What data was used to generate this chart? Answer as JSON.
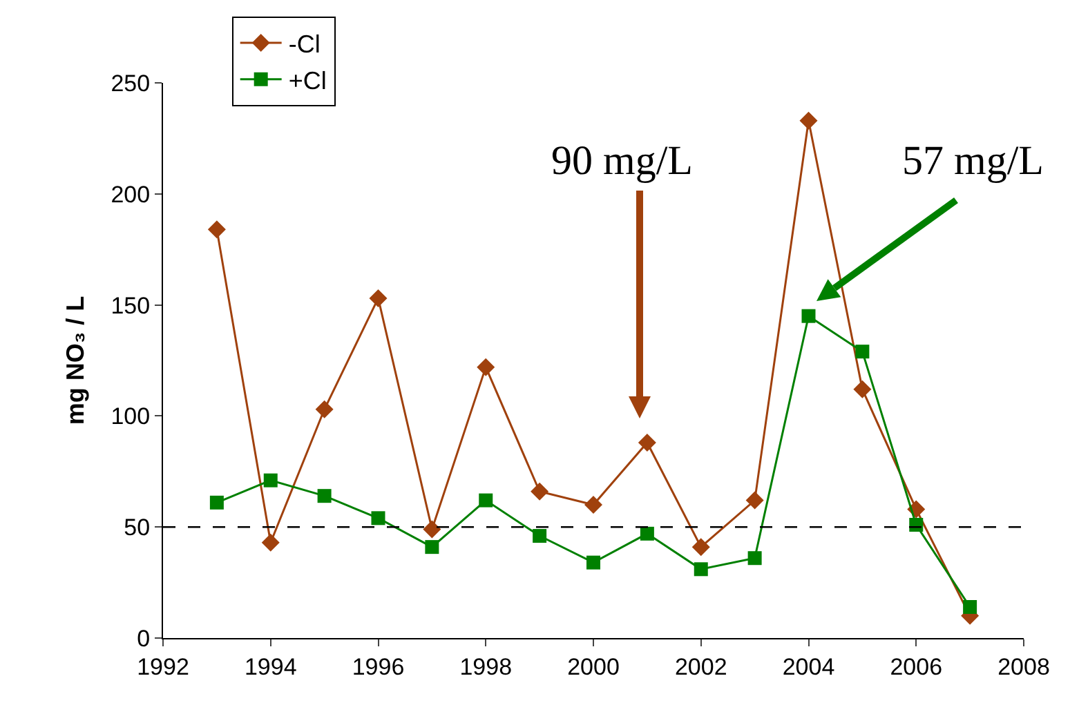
{
  "chart_data": {
    "type": "line",
    "ylabel": "mg NO₃ / L",
    "x": [
      1993,
      1994,
      1995,
      1996,
      1997,
      1998,
      1999,
      2000,
      2001,
      2002,
      2003,
      2004,
      2005,
      2006,
      2007
    ],
    "series": [
      {
        "name": "-Cl",
        "color": "#a0410d",
        "marker": "diamond",
        "values": [
          184,
          43,
          103,
          153,
          49,
          122,
          66,
          60,
          88,
          41,
          62,
          233,
          112,
          58,
          10
        ]
      },
      {
        "name": "+Cl",
        "color": "#008000",
        "marker": "square",
        "values": [
          61,
          71,
          64,
          54,
          41,
          62,
          46,
          34,
          47,
          31,
          36,
          145,
          129,
          51,
          14
        ]
      }
    ],
    "xlim": [
      1992,
      2008
    ],
    "xticks": [
      1992,
      1994,
      1996,
      1998,
      2000,
      2002,
      2004,
      2006,
      2008
    ],
    "ylim": [
      0,
      250
    ],
    "yticks": [
      0,
      50,
      100,
      150,
      200,
      250
    ],
    "ref_lines": [
      {
        "axis": "y",
        "value": 50,
        "line_style": "dashed",
        "color": "#000000"
      }
    ],
    "annotations": [
      "90 mg/L",
      "57 mg/L"
    ],
    "grid": false,
    "legend": "top left",
    "line_style": "solid"
  }
}
